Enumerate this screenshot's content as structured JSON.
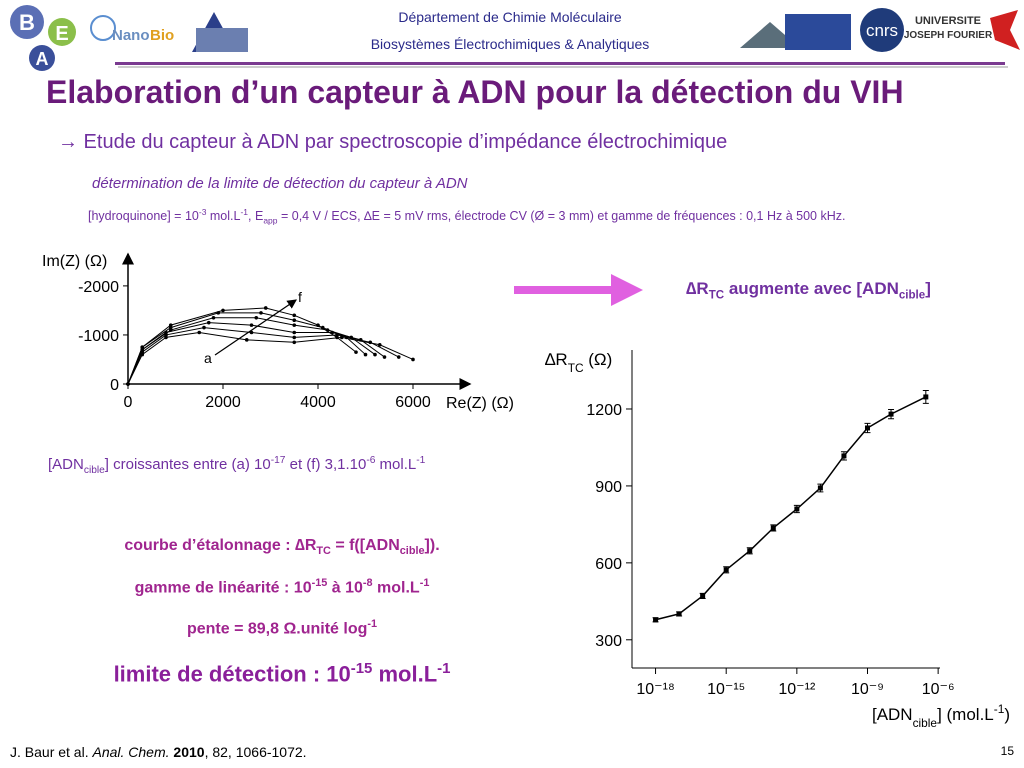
{
  "header": {
    "lines": [
      "Département de Chimie Moléculaire",
      "Biosystèmes Électrochimiques & Analytiques"
    ],
    "logos": [
      "B",
      "E",
      "A",
      "Nano",
      "Bio",
      "cnrs",
      "UNIVERSITE",
      "JOSEPH FOURIER"
    ]
  },
  "title": "Elaboration d’un capteur à ADN pour la détection du VIH",
  "subtitle": "→ Etude du capteur à ADN par spectroscopie d’impédance électrochimique",
  "method": "détermination de la limite de détection du capteur à ADN",
  "conditions": [
    "[hydroquinone] = 10",
    {
      "sup": "-3"
    },
    " mol.L",
    {
      "sup": "-1"
    },
    ", E",
    {
      "sub": "app"
    },
    " = 0,4 V / ECS, ∆E = 5 mV rms, électrode CV (Ø = 3 mm) et gamme de fréquences : 0,1 Hz à 500 kHz."
  ],
  "range_note": [
    "[ADN",
    {
      "sub": "cible"
    },
    "] croissantes entre (a) 10",
    {
      "sup": "-17"
    },
    " et (f) 3,1.10",
    {
      "sup": "-6"
    },
    " mol.L",
    {
      "sup": "-1"
    }
  ],
  "observation": [
    "∆R",
    {
      "sub": "TC"
    },
    " augmente avec [ADN",
    {
      "sub": "cible"
    },
    "]"
  ],
  "results": [
    [
      "courbe d’étalonnage : ∆R",
      {
        "sub": "TC"
      },
      " = f([ADN",
      {
        "sub": "cible"
      },
      "])."
    ],
    [
      "gamme de linéarité : 10",
      {
        "sup": "-15"
      },
      " à 10",
      {
        "sup": "-8"
      },
      " mol.L",
      {
        "sup": "-1"
      }
    ],
    [
      "pente = 89,8 Ω.unité log",
      {
        "sup": "-1"
      }
    ],
    [
      "limite de détection : 10",
      {
        "sup": "-15"
      },
      " mol.L",
      {
        "sup": "-1"
      }
    ]
  ],
  "citation": [
    "J. Baur et al. ",
    {
      "i": "Anal. Chem."
    },
    " ",
    {
      "b": "2010"
    },
    ", 82, 1066-1072."
  ],
  "page_number": "15",
  "chart_data": [
    {
      "type": "line",
      "x_label": [
        "Re(Z) (Ω)"
      ],
      "y_label": [
        "Im(Z) (Ω)"
      ],
      "xlim": [
        0,
        7200
      ],
      "ylim": [
        0,
        -2650
      ],
      "xticks": [
        0,
        2000,
        4000,
        6000
      ],
      "yticks": [
        0,
        -1000,
        -2000
      ],
      "annotations": [
        "a",
        "f"
      ],
      "series": [
        {
          "color": "#000000",
          "x": [
            0,
            300,
            800,
            1500,
            2500,
            3500,
            4500,
            5300,
            6000
          ],
          "values": [
            0,
            -600,
            -950,
            -1050,
            -900,
            -850,
            -950,
            -800,
            -500
          ]
        },
        {
          "color": "#000000",
          "x": [
            0,
            300,
            800,
            1600,
            2600,
            3500,
            4400,
            5100,
            5700
          ],
          "values": [
            0,
            -650,
            -1000,
            -1150,
            -1050,
            -950,
            -1000,
            -850,
            -550
          ]
        },
        {
          "color": "#000000",
          "x": [
            0,
            300,
            800,
            1700,
            2600,
            3500,
            4300,
            4900,
            5400
          ],
          "values": [
            0,
            -700,
            -1050,
            -1250,
            -1200,
            -1050,
            -1050,
            -900,
            -550
          ]
        },
        {
          "color": "#000000",
          "x": [
            0,
            300,
            900,
            1800,
            2700,
            3500,
            4200,
            4700,
            5200
          ],
          "values": [
            0,
            -700,
            -1100,
            -1350,
            -1350,
            -1200,
            -1100,
            -950,
            -600
          ]
        },
        {
          "color": "#000000",
          "x": [
            0,
            300,
            900,
            1900,
            2800,
            3500,
            4100,
            4600,
            5000
          ],
          "values": [
            0,
            -750,
            -1150,
            -1450,
            -1450,
            -1300,
            -1150,
            -950,
            -600
          ]
        },
        {
          "color": "#000000",
          "x": [
            0,
            300,
            900,
            2000,
            2900,
            3500,
            4000,
            4400,
            4800
          ],
          "values": [
            0,
            -750,
            -1200,
            -1500,
            -1550,
            -1400,
            -1200,
            -950,
            -650
          ]
        }
      ]
    },
    {
      "type": "scatter",
      "log_x": true,
      "color": "#000000",
      "x_label": [
        "[ADN",
        {
          "sub": "cible"
        },
        "] (mol.L",
        {
          "sup": "-1"
        },
        ")"
      ],
      "y_label": [
        "∆R",
        {
          "sub": "TC"
        },
        " (Ω)"
      ],
      "xlim": [
        1e-19,
        1.2e-06
      ],
      "ylim": [
        190,
        1430
      ],
      "xticks": [
        {
          "value": 1e-18,
          "label": "10⁻¹⁸"
        },
        {
          "value": 1e-15,
          "label": "10⁻¹⁵"
        },
        {
          "value": 1e-12,
          "label": "10⁻¹²"
        },
        {
          "value": 1e-09,
          "label": "10⁻⁹"
        },
        {
          "value": 1e-06,
          "label": "10⁻⁶"
        }
      ],
      "yticks": [
        300,
        600,
        900,
        1200
      ],
      "x": [
        1e-18,
        1e-17,
        1e-16,
        1e-15,
        1e-14,
        1e-13,
        1e-12,
        1e-11,
        1e-10,
        1e-09,
        1e-08,
        3e-07
      ],
      "values": [
        378,
        401,
        471,
        573,
        647,
        736,
        810,
        892,
        1017,
        1126,
        1180,
        1247
      ],
      "errors": [
        8,
        8,
        10,
        12,
        12,
        12,
        14,
        15,
        16,
        18,
        18,
        25
      ]
    }
  ]
}
